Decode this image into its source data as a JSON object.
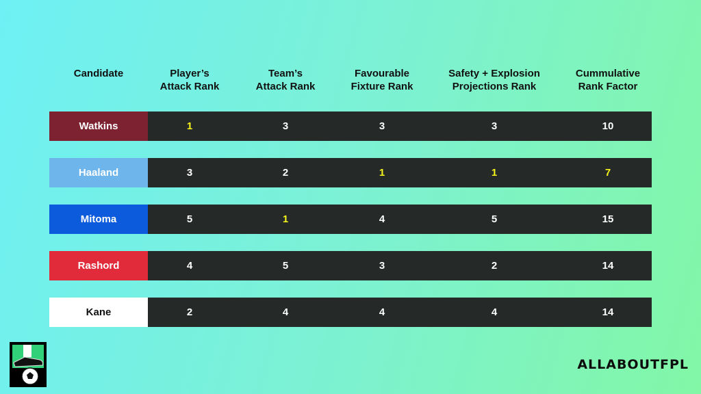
{
  "headers": [
    "Candidate",
    "Player’s\nAttack Rank",
    "Team’s\nAttack Rank",
    "Favourable\nFixture Rank",
    "Safety + Explosion\nProjections Rank",
    "Cummulative\nRank Factor"
  ],
  "rows": [
    {
      "name": "Watkins",
      "color": "#7d2230",
      "text_color": "#ffffff",
      "values": [
        "1",
        "3",
        "3",
        "3",
        "10"
      ],
      "best": [
        true,
        false,
        false,
        false,
        false
      ]
    },
    {
      "name": "Haaland",
      "color": "#6eb5ec",
      "text_color": "#ffffff",
      "values": [
        "3",
        "2",
        "1",
        "1",
        "7"
      ],
      "best": [
        false,
        false,
        true,
        true,
        true
      ]
    },
    {
      "name": "Mitoma",
      "color": "#0b5bdc",
      "text_color": "#ffffff",
      "values": [
        "5",
        "1",
        "4",
        "5",
        "15"
      ],
      "best": [
        false,
        true,
        false,
        false,
        false
      ]
    },
    {
      "name": "Rashord",
      "color": "#e22b3a",
      "text_color": "#ffffff",
      "values": [
        "4",
        "5",
        "3",
        "2",
        "14"
      ],
      "best": [
        false,
        false,
        false,
        false,
        false
      ]
    },
    {
      "name": "Kane",
      "color": "#ffffff",
      "text_color": "#111111",
      "values": [
        "2",
        "4",
        "4",
        "4",
        "14"
      ],
      "best": [
        false,
        false,
        false,
        false,
        false
      ]
    }
  ],
  "brand": "ALLABOUTFPL",
  "highlight_color": "#f5f21c",
  "cell_bg": "#252928",
  "logo": {
    "icon": "boot-and-football-icon",
    "bg": "#000000",
    "accent": "#31d17a"
  }
}
